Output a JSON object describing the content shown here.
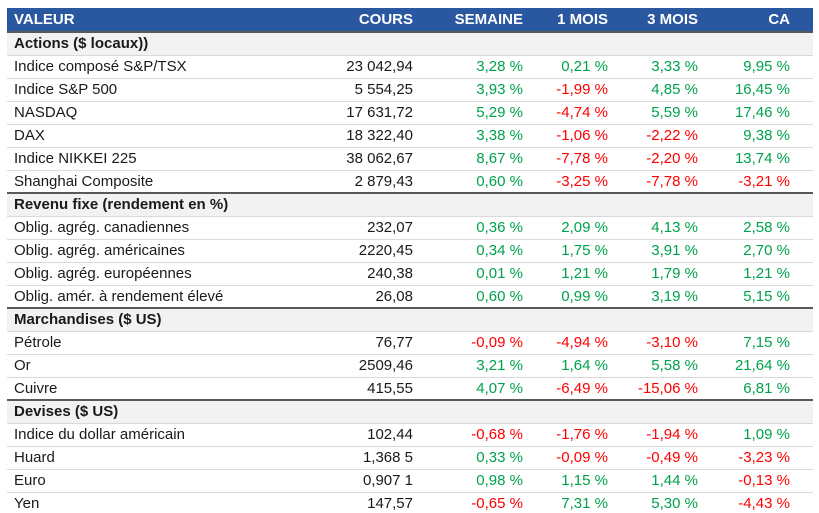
{
  "colors": {
    "header_bg": "#2957A0",
    "header_text": "#FFFFFF",
    "positive": "#00A24C",
    "negative": "#FF0000",
    "section_bg": "#F2F2F2",
    "divider": "#D9D9D9",
    "section_border": "#595959"
  },
  "table": {
    "columns": [
      "VALEUR",
      "COURS",
      "SEMAINE",
      "1 MOIS",
      "3 MOIS",
      "CA"
    ],
    "sections": [
      {
        "title": "Actions ($ locaux))",
        "rows": [
          {
            "label": "Indice composé S&P/TSX",
            "cours": "23 042,94",
            "changes": [
              "3,28 %",
              "0,21 %",
              "3,33 %",
              "9,95 %"
            ]
          },
          {
            "label": "Indice S&P 500",
            "cours": "5 554,25",
            "changes": [
              "3,93 %",
              "-1,99 %",
              "4,85 %",
              "16,45 %"
            ]
          },
          {
            "label": "NASDAQ",
            "cours": "17 631,72",
            "changes": [
              "5,29 %",
              "-4,74 %",
              "5,59 %",
              "17,46 %"
            ]
          },
          {
            "label": "DAX",
            "cours": "18 322,40",
            "changes": [
              "3,38 %",
              "-1,06 %",
              "-2,22 %",
              "9,38 %"
            ]
          },
          {
            "label": "Indice NIKKEI 225",
            "cours": "38 062,67",
            "changes": [
              "8,67 %",
              "-7,78 %",
              "-2,20 %",
              "13,74 %"
            ]
          },
          {
            "label": "Shanghai Composite",
            "cours": "2 879,43",
            "changes": [
              "0,60 %",
              "-3,25 %",
              "-7,78 %",
              "-3,21 %"
            ]
          }
        ]
      },
      {
        "title": "Revenu fixe (rendement en %)",
        "rows": [
          {
            "label": "Oblig. agrég. canadiennes",
            "cours": "232,07",
            "changes": [
              "0,36 %",
              "2,09 %",
              "4,13 %",
              "2,58 %"
            ]
          },
          {
            "label": "Oblig. agrég. américaines",
            "cours": "2220,45",
            "changes": [
              "0,34 %",
              "1,75 %",
              "3,91 %",
              "2,70 %"
            ]
          },
          {
            "label": "Oblig. agrég. européennes",
            "cours": "240,38",
            "changes": [
              "0,01 %",
              "1,21 %",
              "1,79 %",
              "1,21 %"
            ]
          },
          {
            "label": "Oblig. amér. à rendement élevé",
            "cours": "26,08",
            "changes": [
              "0,60 %",
              "0,99 %",
              "3,19 %",
              "5,15 %"
            ]
          }
        ]
      },
      {
        "title": "Marchandises ($ US)",
        "rows": [
          {
            "label": "Pétrole",
            "cours": "76,77",
            "changes": [
              "-0,09 %",
              "-4,94 %",
              "-3,10 %",
              "7,15 %"
            ]
          },
          {
            "label": "Or",
            "cours": "2509,46",
            "changes": [
              "3,21 %",
              "1,64 %",
              "5,58 %",
              "21,64 %"
            ]
          },
          {
            "label": "Cuivre",
            "cours": "415,55",
            "changes": [
              "4,07 %",
              "-6,49 %",
              "-15,06 %",
              "6,81 %"
            ]
          }
        ]
      },
      {
        "title": "Devises ($ US)",
        "rows": [
          {
            "label": "Indice du dollar américain",
            "cours": "102,44",
            "changes": [
              "-0,68 %",
              "-1,76 %",
              "-1,94 %",
              "1,09 %"
            ]
          },
          {
            "label": "Huard",
            "cours": "1,368 5",
            "changes": [
              "0,33 %",
              "-0,09 %",
              "-0,49 %",
              "-3,23 %"
            ]
          },
          {
            "label": "Euro",
            "cours": "0,907 1",
            "changes": [
              "0,98 %",
              "1,15 %",
              "1,44 %",
              "-0,13 %"
            ]
          },
          {
            "label": "Yen",
            "cours": "147,57",
            "changes": [
              "-0,65 %",
              "7,31 %",
              "5,30 %",
              "-4,43 %"
            ]
          }
        ]
      }
    ]
  }
}
